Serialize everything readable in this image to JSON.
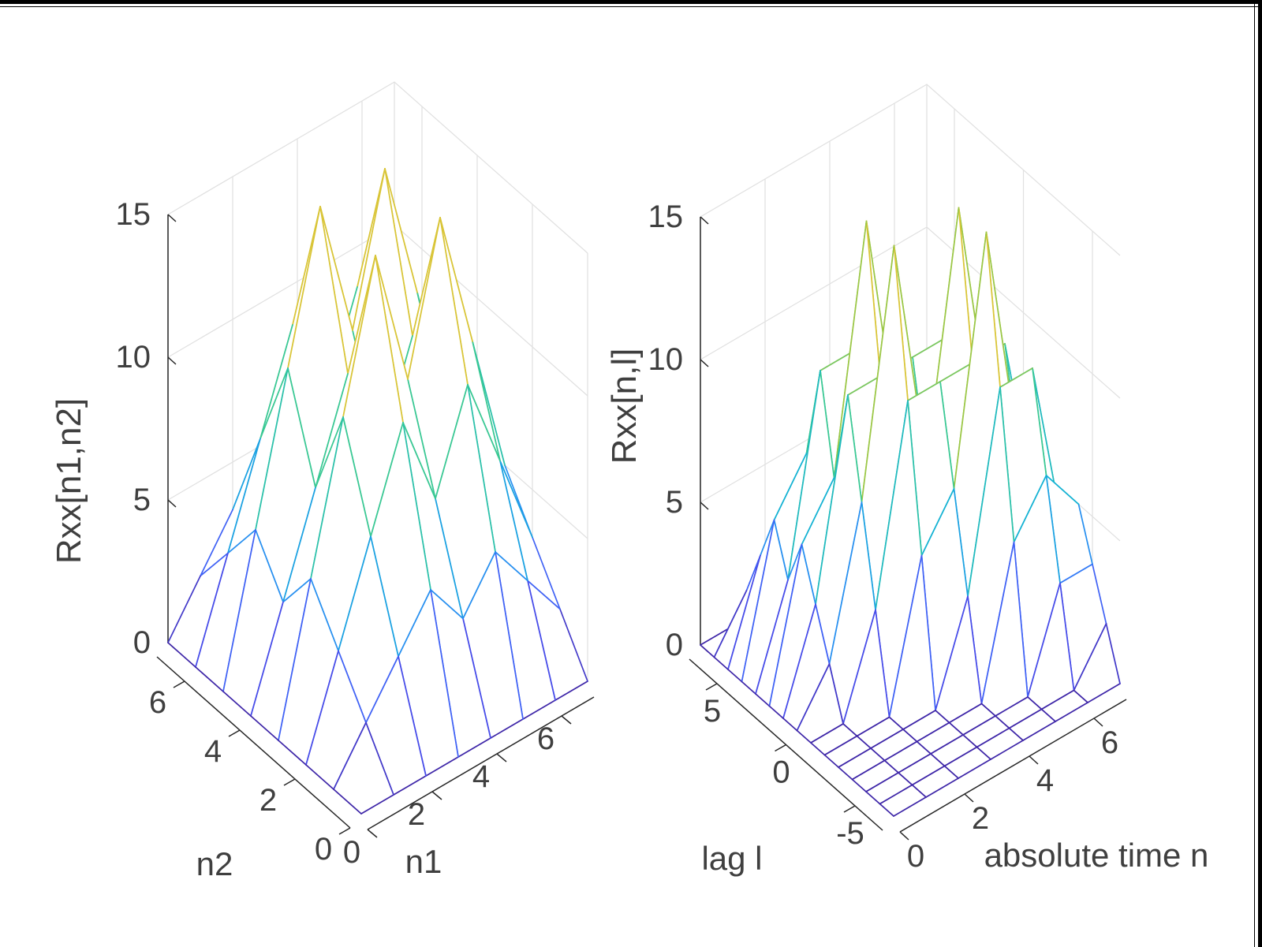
{
  "chart_data": [
    {
      "type": "mesh3d",
      "title": "",
      "xlabel": "n1",
      "ylabel": "n2",
      "zlabel": "Rxx[n1,n2]",
      "x": [
        0,
        1,
        2,
        3,
        4,
        5,
        6,
        7
      ],
      "y": [
        0,
        1,
        2,
        3,
        4,
        5,
        6,
        7
      ],
      "xticks": [
        0,
        2,
        4,
        6
      ],
      "yticks": [
        0,
        2,
        4,
        6
      ],
      "zticks": [
        0,
        5,
        10,
        15
      ],
      "xlim": [
        0,
        7
      ],
      "ylim": [
        0,
        7
      ],
      "zlim": [
        0,
        15
      ],
      "grid": true,
      "legend": "none",
      "colormap": "parula",
      "z": [
        [
          0,
          0,
          0,
          0,
          0,
          0,
          0,
          0
        ],
        [
          0,
          1.67,
          3.33,
          5,
          3.33,
          5,
          3.33,
          1.67
        ],
        [
          0,
          3.33,
          6.67,
          10,
          6.67,
          10,
          6.67,
          3.33
        ],
        [
          0,
          5,
          10,
          15,
          10,
          15,
          10,
          5
        ],
        [
          0,
          3.33,
          6.67,
          10,
          6.67,
          10,
          6.67,
          3.33
        ],
        [
          0,
          5,
          10,
          15,
          10,
          15,
          10,
          5
        ],
        [
          0,
          3.33,
          6.67,
          10,
          6.67,
          10,
          6.67,
          3.33
        ],
        [
          0,
          1.67,
          3.33,
          5,
          3.33,
          5,
          3.33,
          1.67
        ]
      ]
    },
    {
      "type": "mesh3d",
      "title": "",
      "xlabel": "absolute time n",
      "ylabel": "lag l",
      "zlabel": "Rxx[n,l]",
      "x": [
        0,
        1,
        2,
        3,
        4,
        5,
        6,
        7
      ],
      "y": [
        -7,
        -6,
        -5,
        -4,
        -3,
        -2,
        -1,
        0,
        1,
        2,
        3,
        4,
        5,
        6,
        7
      ],
      "xticks": [
        0,
        2,
        4,
        6
      ],
      "yticks": [
        -5,
        0,
        5
      ],
      "zticks": [
        0,
        5,
        10,
        15
      ],
      "xlim": [
        0,
        7
      ],
      "ylim": [
        -7,
        7
      ],
      "zlim": [
        0,
        15
      ],
      "grid": true,
      "legend": "none",
      "colormap": "parula",
      "z": [
        [
          0,
          0,
          0,
          0,
          0,
          0,
          0,
          0
        ],
        [
          0,
          0,
          0,
          0,
          0,
          0,
          0,
          1.67
        ],
        [
          0,
          0,
          0,
          0,
          0,
          0,
          3.33,
          3.33
        ],
        [
          0,
          0,
          0,
          0,
          0,
          5,
          6.67,
          5
        ],
        [
          0,
          0,
          0,
          0,
          3.33,
          10,
          10,
          3.33
        ],
        [
          0,
          0,
          0,
          5,
          6.67,
          15,
          6.67,
          5
        ],
        [
          0,
          0,
          3.33,
          10,
          10,
          10,
          10,
          3.33
        ],
        [
          0,
          1.67,
          6.67,
          15,
          6.67,
          15,
          6.67,
          1.67
        ],
        [
          0,
          3.33,
          10,
          10,
          10,
          10,
          3.33,
          0
        ],
        [
          0,
          5,
          6.67,
          15,
          6.67,
          5,
          0,
          0
        ],
        [
          0,
          3.33,
          10,
          10,
          3.33,
          0,
          0,
          0
        ],
        [
          0,
          5,
          6.67,
          5,
          0,
          0,
          0,
          0
        ],
        [
          0,
          3.33,
          3.33,
          0,
          0,
          0,
          0,
          0
        ],
        [
          0,
          1.67,
          0,
          0,
          0,
          0,
          0,
          0
        ],
        [
          0,
          0,
          0,
          0,
          0,
          0,
          0,
          0
        ]
      ]
    }
  ],
  "style": {
    "background": "#ffffff",
    "frame_border_color": "#000000",
    "axis_color": "#262626",
    "grid_color": "#e0e0e0",
    "tick_label_color": "#3f3f3f",
    "axis_label_color": "#3f3f3f",
    "mesh_face_color": "#ffffff",
    "parula": [
      [
        0.0,
        "#3e26a8"
      ],
      [
        0.13,
        "#4852f4"
      ],
      [
        0.25,
        "#2e87f7"
      ],
      [
        0.38,
        "#12b1d6"
      ],
      [
        0.55,
        "#37c897"
      ],
      [
        0.75,
        "#abc739"
      ],
      [
        0.9,
        "#fec338"
      ],
      [
        1.0,
        "#f9fb15"
      ]
    ]
  }
}
